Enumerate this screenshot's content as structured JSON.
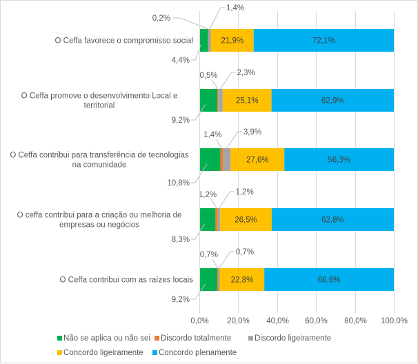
{
  "chart_data": {
    "type": "bar",
    "orientation": "horizontal",
    "stacked": "percent",
    "title": "",
    "xlabel": "",
    "ylabel": "",
    "xlim": [
      0,
      100
    ],
    "x_ticks": [
      "0,0%",
      "20,0%",
      "40,0%",
      "60,0%",
      "80,0%",
      "100,0%"
    ],
    "grid": true,
    "legend_position": "bottom",
    "categories": [
      "O Ceffa favorece o compromisso social",
      "O Ceffa promove o desenvolvimento Local e territorial",
      "O Ceffa contribui para transferência de tecnologias na comunidade",
      "O ceffa contribui para a criação ou melhoria de empresas ou negócios",
      "O Ceffa contribui com as raízes locais"
    ],
    "category_lines": [
      [
        "O Ceffa favorece o compromisso social"
      ],
      [
        "O Ceffa promove o desenvolvimento Local e",
        "territorial"
      ],
      [
        "O Ceffa contribui para transferência de tecnologias",
        "na comunidade"
      ],
      [
        "O ceffa contribui para a criação ou melhoria de",
        "empresas ou negócios"
      ],
      [
        "O Ceffa contribui com as raízes locais"
      ]
    ],
    "series": [
      {
        "name": "Não se aplica ou não sei",
        "color": "#00b050",
        "values": [
          4.4,
          9.2,
          10.8,
          8.3,
          9.2
        ],
        "labels": [
          "4,4%",
          "9,2%",
          "10,8%",
          "8,3%",
          "9,2%"
        ]
      },
      {
        "name": "Discordo totalmente",
        "color": "#ed7d31",
        "values": [
          0.2,
          0.5,
          1.4,
          1.2,
          0.7
        ],
        "labels": [
          "0,2%",
          "0,5%",
          "1,4%",
          "1,2%",
          "0,7%"
        ]
      },
      {
        "name": "Discordo ligeiramente",
        "color": "#a5a5a5",
        "values": [
          1.4,
          2.3,
          3.9,
          1.2,
          0.7
        ],
        "labels": [
          "1,4%",
          "2,3%",
          "3,9%",
          "1,2%",
          "0,7%"
        ]
      },
      {
        "name": "Concordo ligeiramente",
        "color": "#ffc000",
        "values": [
          21.9,
          25.1,
          27.6,
          26.5,
          22.8
        ],
        "labels": [
          "21,9%",
          "25,1%",
          "27,6%",
          "26,5%",
          "22,8%"
        ]
      },
      {
        "name": "Concordo plenamente",
        "color": "#00b0f0",
        "values": [
          72.1,
          62.9,
          56.3,
          62.8,
          66.6
        ],
        "labels": [
          "72,1%",
          "62,9%",
          "56,3%",
          "62,8%",
          "66,6%"
        ]
      }
    ]
  },
  "legend": {
    "items": [
      {
        "label": "Não se aplica ou não sei",
        "color": "#00b050"
      },
      {
        "label": "Discordo totalmente",
        "color": "#ed7d31"
      },
      {
        "label": "Discordo ligeiramente",
        "color": "#a5a5a5"
      },
      {
        "label": "Concordo ligeiramente",
        "color": "#ffc000"
      },
      {
        "label": "Concordo plenamente",
        "color": "#00b0f0"
      }
    ]
  }
}
